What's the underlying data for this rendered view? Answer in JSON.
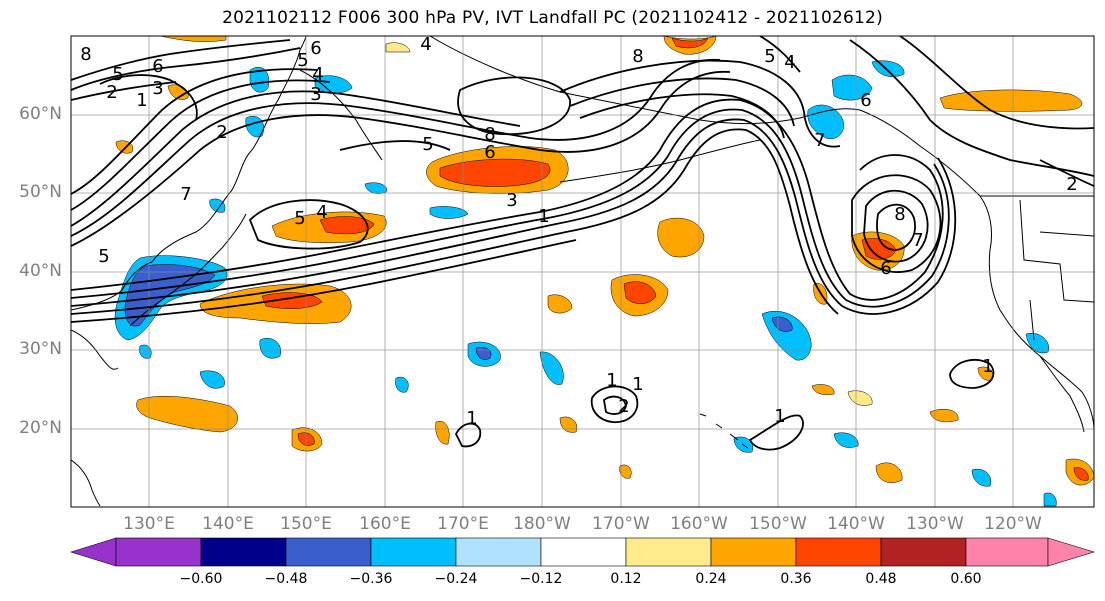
{
  "title": "2021102112 F006 300 hPa PV, IVT Landfall PC (2021102412 - 2021102612)",
  "lat_labels": [
    "60°N",
    "50°N",
    "40°N",
    "30°N",
    "20°N"
  ],
  "lon_labels": [
    "130°E",
    "140°E",
    "150°E",
    "160°E",
    "170°E",
    "180°W",
    "170°W",
    "160°W",
    "150°W",
    "140°W",
    "130°W",
    "120°W"
  ],
  "colorbar": {
    "ticks": [
      "−0.60",
      "−0.48",
      "−0.36",
      "−0.24",
      "−0.12",
      "0.12",
      "0.24",
      "0.36",
      "0.48",
      "0.60"
    ],
    "colors": [
      "#9932cc",
      "#00008b",
      "#3a5fcd",
      "#00bfff",
      "#b0e2ff",
      "#ffffff",
      "#ffeb8b",
      "#ffa500",
      "#ff4500",
      "#b22222",
      "#ff82ab"
    ]
  },
  "contour_labels": [
    {
      "text": "8"
    },
    {
      "text": "5"
    },
    {
      "text": "6"
    },
    {
      "text": "3"
    },
    {
      "text": "1"
    },
    {
      "text": "2"
    },
    {
      "text": "6"
    },
    {
      "text": "5"
    },
    {
      "text": "4"
    },
    {
      "text": "3"
    },
    {
      "text": "8"
    },
    {
      "text": "6"
    },
    {
      "text": "5"
    },
    {
      "text": "5"
    },
    {
      "text": "4"
    },
    {
      "text": "3"
    },
    {
      "text": "1"
    },
    {
      "text": "8"
    },
    {
      "text": "5"
    },
    {
      "text": "4"
    },
    {
      "text": "7"
    },
    {
      "text": "6"
    },
    {
      "text": "8"
    },
    {
      "text": "7"
    },
    {
      "text": "6"
    },
    {
      "text": "2"
    },
    {
      "text": "1"
    },
    {
      "text": "1"
    },
    {
      "text": "1"
    },
    {
      "text": "2"
    },
    {
      "text": "1"
    },
    {
      "text": "1"
    },
    {
      "text": "5"
    },
    {
      "text": "2"
    },
    {
      "text": "4"
    },
    {
      "text": "7"
    }
  ]
}
